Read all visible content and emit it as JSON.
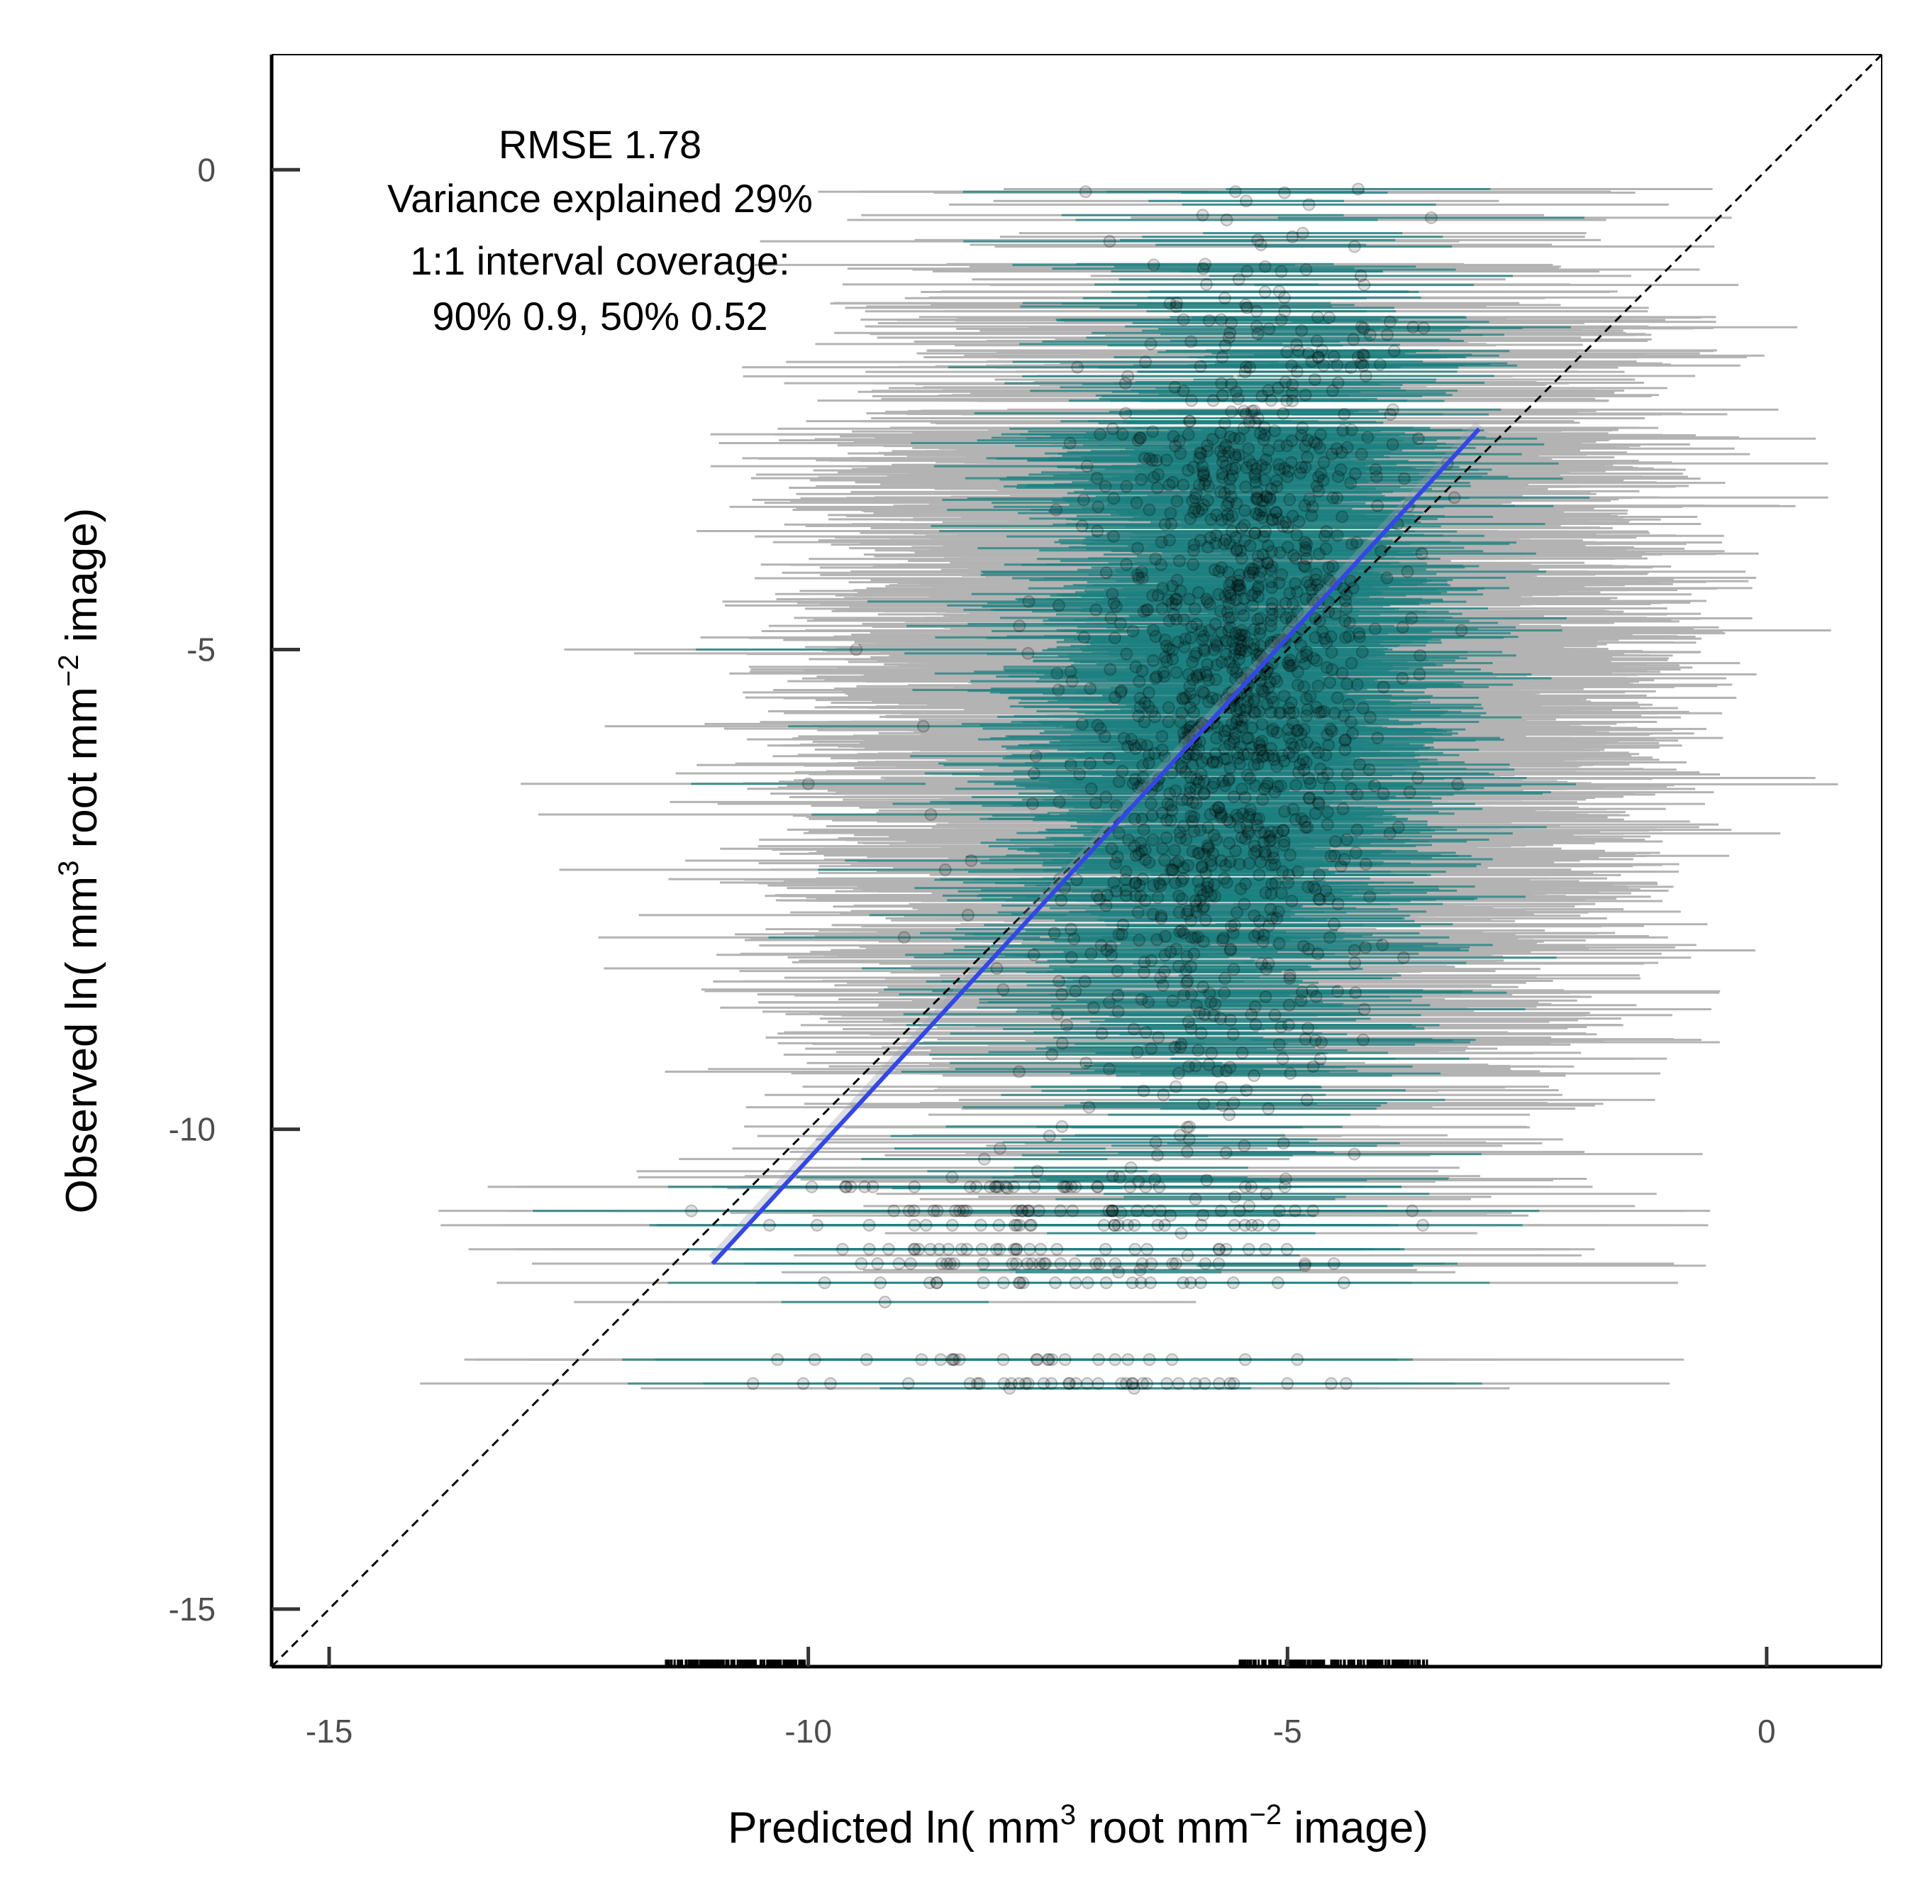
{
  "chart_data": {
    "type": "scatter",
    "xlabel": {
      "prefix": "Predicted ln( mm",
      "sup1": "3",
      "mid": " root mm",
      "sup2": "−2",
      "suffix": " image)"
    },
    "ylabel": {
      "prefix": "Observed ln( mm",
      "sup1": "3",
      "mid": " root mm",
      "sup2": "−2",
      "suffix": " image)"
    },
    "xlim": [
      -15.6,
      1.2
    ],
    "ylim": [
      -15.6,
      1.2
    ],
    "x_ticks": [
      {
        "value": -15,
        "label": "-15"
      },
      {
        "value": -10,
        "label": "-10"
      },
      {
        "value": -5,
        "label": "-5"
      },
      {
        "value": 0,
        "label": "0"
      }
    ],
    "y_ticks": [
      {
        "value": 0,
        "label": "0"
      },
      {
        "value": -5,
        "label": "-5"
      },
      {
        "value": -10,
        "label": "-10"
      },
      {
        "value": -15,
        "label": "-15"
      }
    ],
    "annotation_lines": [
      "RMSE 1.78",
      "Variance explained 29%",
      "1:1 interval coverage:",
      "90% 0.9, 50% 0.52"
    ],
    "reference_line": {
      "type": "1:1",
      "x": [
        -15.6,
        1.2
      ],
      "y": [
        -15.6,
        1.2
      ],
      "style": "dashed",
      "color": "#000000"
    },
    "regression_line": {
      "x": [
        -11.0,
        -3.0
      ],
      "y": [
        -11.4,
        -2.7
      ],
      "color": "#3347e6"
    },
    "colors": {
      "interval_90": "#b3b3b3",
      "interval_50": "#1e8080",
      "points": "#000000",
      "regression": "#3347e6"
    },
    "series": [
      {
        "name": "",
        "description_points": "many thousands of observations; dense cloud centered near predicted -5.5, observed -5.5",
        "points": [
          [
            -5.5,
            -5.0
          ],
          [
            -5.7,
            -4.6
          ],
          [
            -5.2,
            -5.4
          ],
          [
            -6.0,
            -5.8
          ],
          [
            -5.4,
            -4.2
          ],
          [
            -5.9,
            -6.3
          ],
          [
            -5.1,
            -4.9
          ],
          [
            -5.6,
            -6.8
          ],
          [
            -4.9,
            -4.4
          ],
          [
            -6.2,
            -5.1
          ],
          [
            -5.3,
            -3.6
          ],
          [
            -5.8,
            -7.2
          ],
          [
            -4.7,
            -5.6
          ],
          [
            -6.4,
            -4.8
          ],
          [
            -5.0,
            -3.2
          ],
          [
            -6.1,
            -7.6
          ],
          [
            -4.6,
            -6.1
          ],
          [
            -6.6,
            -6.0
          ],
          [
            -5.5,
            -2.8
          ],
          [
            -6.0,
            -8.0
          ],
          [
            -4.4,
            -4.7
          ],
          [
            -6.8,
            -5.5
          ],
          [
            -5.2,
            -2.3
          ],
          [
            -6.3,
            -8.5
          ],
          [
            -4.8,
            -3.9
          ],
          [
            -7.0,
            -6.6
          ],
          [
            -5.6,
            -1.7
          ],
          [
            -4.5,
            -7.0
          ],
          [
            -7.2,
            -7.4
          ],
          [
            -5.9,
            -9.0
          ],
          [
            -6.5,
            -9.6
          ],
          [
            -7.4,
            -8.8
          ],
          [
            -8.0,
            -10.2
          ],
          [
            -8.5,
            -10.5
          ],
          [
            -7.8,
            -9.4
          ],
          [
            -4.2,
            -1.2
          ],
          [
            -3.9,
            -2.5
          ],
          [
            -3.6,
            -4.0
          ],
          [
            -4.0,
            -6.5
          ],
          [
            -8.3,
            -7.2
          ],
          [
            -7.7,
            -4.5
          ],
          [
            -8.8,
            -5.8
          ],
          [
            -6.9,
            -3.3
          ],
          [
            -4.3,
            -0.8
          ],
          [
            -3.8,
            -5.3
          ],
          [
            -9.0,
            -8.0
          ],
          [
            -8.2,
            -11.0
          ],
          [
            -7.0,
            -11.4
          ],
          [
            -6.2,
            -11.4
          ],
          [
            -7.5,
            -12.4
          ],
          [
            -6.8,
            -12.4
          ],
          [
            -8.5,
            -12.4
          ],
          [
            -5.4,
            -10.8
          ],
          [
            -9.2,
            -11.8
          ],
          [
            -6.6,
            -12.7
          ],
          [
            -7.9,
            -12.7
          ],
          [
            -5.9,
            -11.0
          ],
          [
            -3.5,
            -0.5
          ],
          [
            -10.0,
            -6.4
          ],
          [
            -9.5,
            -5.0
          ]
        ]
      }
    ]
  }
}
